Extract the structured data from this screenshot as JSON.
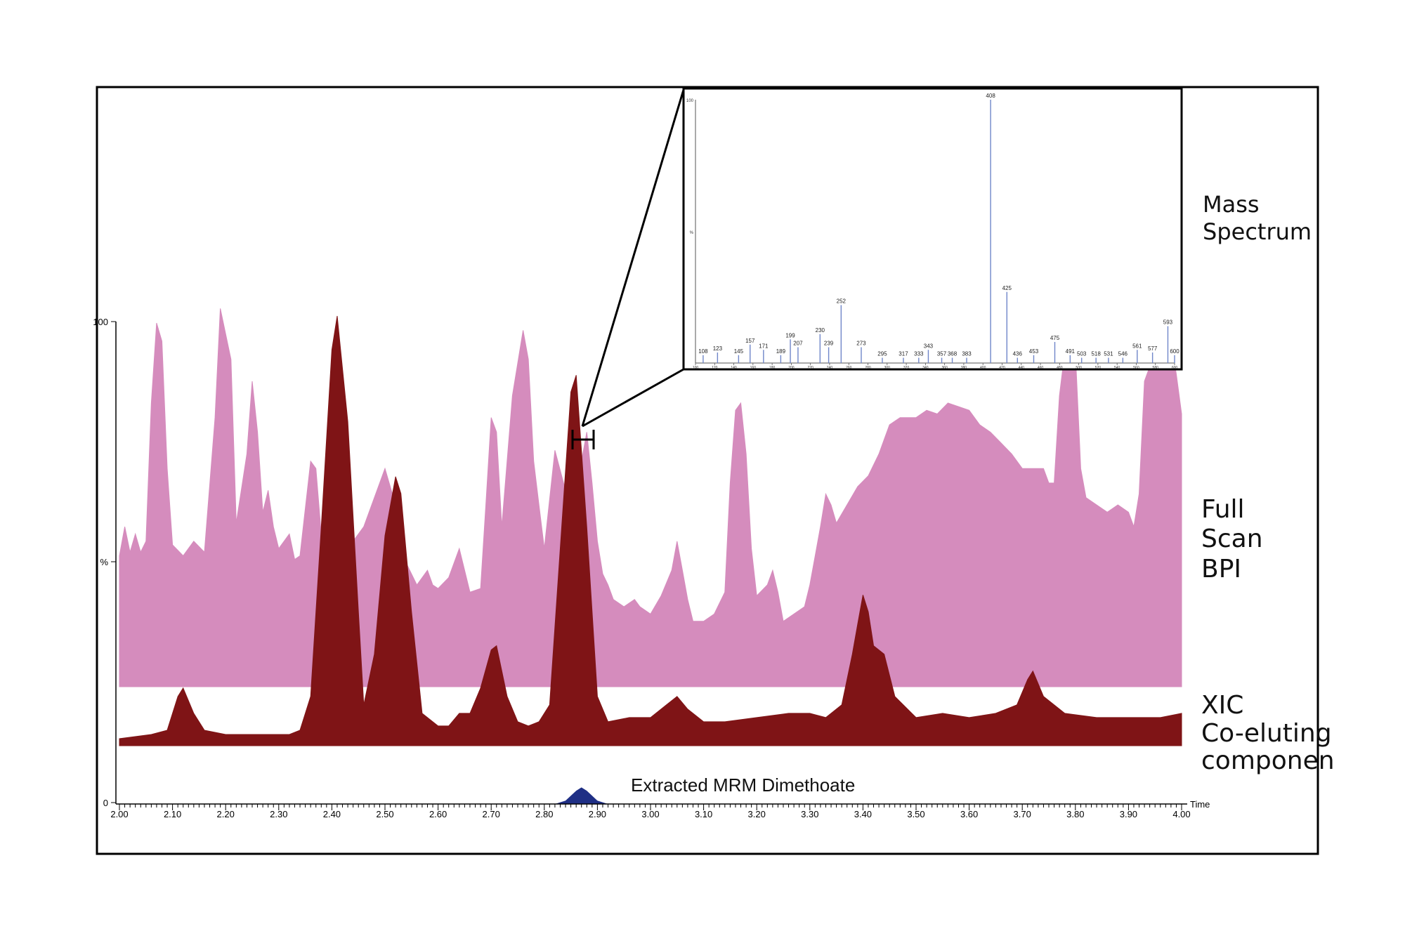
{
  "colors": {
    "bpi_fill": "#d58cbd",
    "xic_fill": "#7f1416",
    "mrm_fill": "#1f2f85",
    "spectrum_line": "#6f86c9",
    "frame": "#000000"
  },
  "labels": {
    "mass_spectrum": [
      "Mass",
      "Spectrum"
    ],
    "full_scan_bpi": [
      "Full",
      "Scan",
      "BPI"
    ],
    "xic": [
      "XIC",
      "Co-eluting",
      "componen"
    ],
    "mrm": "Extracted MRM Dimethoate"
  },
  "chart_data": [
    {
      "type": "area",
      "name": "chromatogram",
      "x_unit_label": "Time",
      "xlim": [
        2.0,
        4.0
      ],
      "x_ticks": [
        "2.00",
        "2.10",
        "2.20",
        "2.30",
        "2.40",
        "2.50",
        "2.60",
        "2.70",
        "2.80",
        "2.90",
        "3.00",
        "3.10",
        "3.20",
        "3.30",
        "3.40",
        "3.50",
        "3.60",
        "3.70",
        "3.80",
        "3.90",
        "4.00"
      ],
      "y_ticks": [
        "100",
        "%",
        "0"
      ],
      "series": [
        {
          "id": "bpi",
          "name": "Full Scan BPI",
          "points": [
            [
              2.0,
              0.36
            ],
            [
              2.01,
              0.44
            ],
            [
              2.02,
              0.37
            ],
            [
              2.03,
              0.42
            ],
            [
              2.04,
              0.37
            ],
            [
              2.05,
              0.4
            ],
            [
              2.06,
              0.78
            ],
            [
              2.07,
              1.0
            ],
            [
              2.08,
              0.95
            ],
            [
              2.09,
              0.6
            ],
            [
              2.1,
              0.39
            ],
            [
              2.12,
              0.36
            ],
            [
              2.14,
              0.4
            ],
            [
              2.16,
              0.37
            ],
            [
              2.18,
              0.74
            ],
            [
              2.19,
              1.04
            ],
            [
              2.21,
              0.9
            ],
            [
              2.22,
              0.45
            ],
            [
              2.24,
              0.64
            ],
            [
              2.25,
              0.84
            ],
            [
              2.26,
              0.7
            ],
            [
              2.27,
              0.48
            ],
            [
              2.28,
              0.54
            ],
            [
              2.29,
              0.44
            ],
            [
              2.3,
              0.38
            ],
            [
              2.32,
              0.42
            ],
            [
              2.33,
              0.35
            ],
            [
              2.34,
              0.36
            ],
            [
              2.36,
              0.62
            ],
            [
              2.37,
              0.6
            ],
            [
              2.38,
              0.42
            ],
            [
              2.39,
              0.46
            ],
            [
              2.41,
              0.5
            ],
            [
              2.42,
              0.46
            ],
            [
              2.44,
              0.4
            ],
            [
              2.46,
              0.44
            ],
            [
              2.5,
              0.6
            ],
            [
              2.52,
              0.5
            ],
            [
              2.54,
              0.34
            ],
            [
              2.56,
              0.28
            ],
            [
              2.58,
              0.32
            ],
            [
              2.59,
              0.28
            ],
            [
              2.6,
              0.27
            ],
            [
              2.62,
              0.3
            ],
            [
              2.64,
              0.38
            ],
            [
              2.65,
              0.32
            ],
            [
              2.66,
              0.26
            ],
            [
              2.68,
              0.27
            ],
            [
              2.69,
              0.5
            ],
            [
              2.7,
              0.74
            ],
            [
              2.71,
              0.7
            ],
            [
              2.72,
              0.44
            ],
            [
              2.74,
              0.8
            ],
            [
              2.76,
              0.98
            ],
            [
              2.77,
              0.9
            ],
            [
              2.78,
              0.62
            ],
            [
              2.79,
              0.5
            ],
            [
              2.8,
              0.38
            ],
            [
              2.82,
              0.65
            ],
            [
              2.84,
              0.54
            ],
            [
              2.85,
              0.5
            ],
            [
              2.86,
              0.5
            ],
            [
              2.87,
              0.62
            ],
            [
              2.88,
              0.7
            ],
            [
              2.89,
              0.56
            ],
            [
              2.9,
              0.4
            ],
            [
              2.91,
              0.31
            ],
            [
              2.92,
              0.28
            ],
            [
              2.93,
              0.24
            ],
            [
              2.95,
              0.22
            ],
            [
              2.97,
              0.24
            ],
            [
              2.98,
              0.22
            ],
            [
              3.0,
              0.2
            ],
            [
              3.02,
              0.25
            ],
            [
              3.04,
              0.32
            ],
            [
              3.05,
              0.4
            ],
            [
              3.06,
              0.32
            ],
            [
              3.07,
              0.24
            ],
            [
              3.08,
              0.18
            ],
            [
              3.1,
              0.18
            ],
            [
              3.12,
              0.2
            ],
            [
              3.14,
              0.26
            ],
            [
              3.15,
              0.56
            ],
            [
              3.16,
              0.76
            ],
            [
              3.17,
              0.78
            ],
            [
              3.18,
              0.64
            ],
            [
              3.19,
              0.38
            ],
            [
              3.2,
              0.25
            ],
            [
              3.22,
              0.28
            ],
            [
              3.23,
              0.32
            ],
            [
              3.24,
              0.26
            ],
            [
              3.25,
              0.18
            ],
            [
              3.27,
              0.2
            ],
            [
              3.29,
              0.22
            ],
            [
              3.3,
              0.28
            ],
            [
              3.31,
              0.36
            ],
            [
              3.32,
              0.44
            ],
            [
              3.33,
              0.53
            ],
            [
              3.34,
              0.5
            ],
            [
              3.35,
              0.45
            ],
            [
              3.37,
              0.5
            ],
            [
              3.39,
              0.55
            ],
            [
              3.41,
              0.58
            ],
            [
              3.43,
              0.64
            ],
            [
              3.44,
              0.68
            ],
            [
              3.45,
              0.72
            ],
            [
              3.47,
              0.74
            ],
            [
              3.5,
              0.74
            ],
            [
              3.52,
              0.76
            ],
            [
              3.54,
              0.75
            ],
            [
              3.56,
              0.78
            ],
            [
              3.58,
              0.77
            ],
            [
              3.6,
              0.76
            ],
            [
              3.62,
              0.72
            ],
            [
              3.64,
              0.7
            ],
            [
              3.66,
              0.67
            ],
            [
              3.68,
              0.64
            ],
            [
              3.7,
              0.6
            ],
            [
              3.72,
              0.6
            ],
            [
              3.74,
              0.6
            ],
            [
              3.75,
              0.56
            ],
            [
              3.76,
              0.56
            ],
            [
              3.77,
              0.8
            ],
            [
              3.78,
              0.92
            ],
            [
              3.8,
              0.92
            ],
            [
              3.81,
              0.6
            ],
            [
              3.82,
              0.52
            ],
            [
              3.84,
              0.5
            ],
            [
              3.86,
              0.48
            ],
            [
              3.88,
              0.5
            ],
            [
              3.9,
              0.48
            ],
            [
              3.91,
              0.44
            ],
            [
              3.92,
              0.53
            ],
            [
              3.93,
              0.84
            ],
            [
              3.95,
              0.92
            ],
            [
              3.97,
              0.88
            ],
            [
              3.98,
              0.95
            ],
            [
              3.99,
              0.86
            ],
            [
              4.0,
              0.75
            ]
          ]
        },
        {
          "id": "xic",
          "name": "XIC Co-eluting componen",
          "points": [
            [
              2.0,
              0.0
            ],
            [
              2.06,
              0.01
            ],
            [
              2.09,
              0.02
            ],
            [
              2.11,
              0.1
            ],
            [
              2.12,
              0.12
            ],
            [
              2.14,
              0.06
            ],
            [
              2.16,
              0.02
            ],
            [
              2.2,
              0.01
            ],
            [
              2.32,
              0.01
            ],
            [
              2.34,
              0.02
            ],
            [
              2.36,
              0.1
            ],
            [
              2.38,
              0.5
            ],
            [
              2.4,
              0.92
            ],
            [
              2.41,
              1.0
            ],
            [
              2.43,
              0.75
            ],
            [
              2.45,
              0.3
            ],
            [
              2.46,
              0.08
            ],
            [
              2.48,
              0.2
            ],
            [
              2.5,
              0.48
            ],
            [
              2.52,
              0.62
            ],
            [
              2.53,
              0.58
            ],
            [
              2.55,
              0.3
            ],
            [
              2.57,
              0.06
            ],
            [
              2.6,
              0.03
            ],
            [
              2.62,
              0.03
            ],
            [
              2.64,
              0.06
            ],
            [
              2.66,
              0.06
            ],
            [
              2.68,
              0.12
            ],
            [
              2.7,
              0.21
            ],
            [
              2.71,
              0.22
            ],
            [
              2.73,
              0.1
            ],
            [
              2.75,
              0.04
            ],
            [
              2.77,
              0.03
            ],
            [
              2.79,
              0.04
            ],
            [
              2.81,
              0.08
            ],
            [
              2.83,
              0.45
            ],
            [
              2.85,
              0.82
            ],
            [
              2.86,
              0.86
            ],
            [
              2.88,
              0.5
            ],
            [
              2.9,
              0.1
            ],
            [
              2.92,
              0.04
            ],
            [
              2.96,
              0.05
            ],
            [
              3.0,
              0.05
            ],
            [
              3.03,
              0.08
            ],
            [
              3.05,
              0.1
            ],
            [
              3.07,
              0.07
            ],
            [
              3.1,
              0.04
            ],
            [
              3.14,
              0.04
            ],
            [
              3.2,
              0.05
            ],
            [
              3.26,
              0.06
            ],
            [
              3.3,
              0.06
            ],
            [
              3.33,
              0.05
            ],
            [
              3.36,
              0.08
            ],
            [
              3.38,
              0.2
            ],
            [
              3.39,
              0.27
            ],
            [
              3.4,
              0.34
            ],
            [
              3.41,
              0.3
            ],
            [
              3.42,
              0.22
            ],
            [
              3.44,
              0.2
            ],
            [
              3.46,
              0.1
            ],
            [
              3.5,
              0.05
            ],
            [
              3.55,
              0.06
            ],
            [
              3.6,
              0.05
            ],
            [
              3.65,
              0.06
            ],
            [
              3.69,
              0.08
            ],
            [
              3.71,
              0.14
            ],
            [
              3.72,
              0.16
            ],
            [
              3.74,
              0.1
            ],
            [
              3.78,
              0.06
            ],
            [
              3.84,
              0.05
            ],
            [
              3.9,
              0.05
            ],
            [
              3.96,
              0.05
            ],
            [
              4.0,
              0.06
            ]
          ]
        },
        {
          "id": "mrm",
          "name": "Extracted MRM Dimethoate",
          "points": [
            [
              2.82,
              0.0
            ],
            [
              2.84,
              0.04
            ],
            [
              2.86,
              0.16
            ],
            [
              2.87,
              0.2
            ],
            [
              2.88,
              0.16
            ],
            [
              2.9,
              0.04
            ],
            [
              2.92,
              0.0
            ]
          ]
        }
      ]
    },
    {
      "type": "bar",
      "name": "mass_spectrum_inset",
      "peaks": [
        {
          "mz": 108,
          "i": 0.03,
          "label": "108"
        },
        {
          "mz": 123,
          "i": 0.04,
          "label": "123"
        },
        {
          "mz": 145,
          "i": 0.03,
          "label": "145"
        },
        {
          "mz": 157,
          "i": 0.07,
          "label": "157"
        },
        {
          "mz": 171,
          "i": 0.05,
          "label": "171"
        },
        {
          "mz": 189,
          "i": 0.03,
          "label": "189"
        },
        {
          "mz": 199,
          "i": 0.09,
          "label": "199"
        },
        {
          "mz": 207,
          "i": 0.06,
          "label": "207"
        },
        {
          "mz": 230,
          "i": 0.11,
          "label": "230"
        },
        {
          "mz": 239,
          "i": 0.06,
          "label": "239"
        },
        {
          "mz": 252,
          "i": 0.22,
          "label": "252"
        },
        {
          "mz": 273,
          "i": 0.06,
          "label": "273"
        },
        {
          "mz": 295,
          "i": 0.02,
          "label": "295"
        },
        {
          "mz": 317,
          "i": 0.02,
          "label": "317"
        },
        {
          "mz": 333,
          "i": 0.02,
          "label": "333"
        },
        {
          "mz": 343,
          "i": 0.05,
          "label": "343"
        },
        {
          "mz": 357,
          "i": 0.02,
          "label": "357"
        },
        {
          "mz": 368,
          "i": 0.02,
          "label": "368"
        },
        {
          "mz": 383,
          "i": 0.02,
          "label": "383"
        },
        {
          "mz": 408,
          "i": 1.0,
          "label": "408"
        },
        {
          "mz": 425,
          "i": 0.27,
          "label": "425"
        },
        {
          "mz": 436,
          "i": 0.02,
          "label": "436"
        },
        {
          "mz": 453,
          "i": 0.03,
          "label": "453"
        },
        {
          "mz": 475,
          "i": 0.08,
          "label": "475"
        },
        {
          "mz": 491,
          "i": 0.03,
          "label": "491"
        },
        {
          "mz": 503,
          "i": 0.02,
          "label": "503"
        },
        {
          "mz": 518,
          "i": 0.02,
          "label": "518"
        },
        {
          "mz": 531,
          "i": 0.02,
          "label": "531"
        },
        {
          "mz": 546,
          "i": 0.02,
          "label": "546"
        },
        {
          "mz": 561,
          "i": 0.05,
          "label": "561"
        },
        {
          "mz": 577,
          "i": 0.04,
          "label": "577"
        },
        {
          "mz": 593,
          "i": 0.14,
          "label": "593"
        },
        {
          "mz": 600,
          "i": 0.03,
          "label": "600"
        }
      ],
      "xlim": [
        100,
        600
      ],
      "x_ticks": [
        "100",
        "120",
        "140",
        "160",
        "180",
        "200",
        "220",
        "240",
        "260",
        "280",
        "300",
        "320",
        "340",
        "360",
        "380",
        "400",
        "420",
        "440",
        "460",
        "480",
        "500",
        "520",
        "540",
        "560",
        "580",
        "600"
      ],
      "y_ticks": [
        "100",
        "%"
      ]
    }
  ]
}
